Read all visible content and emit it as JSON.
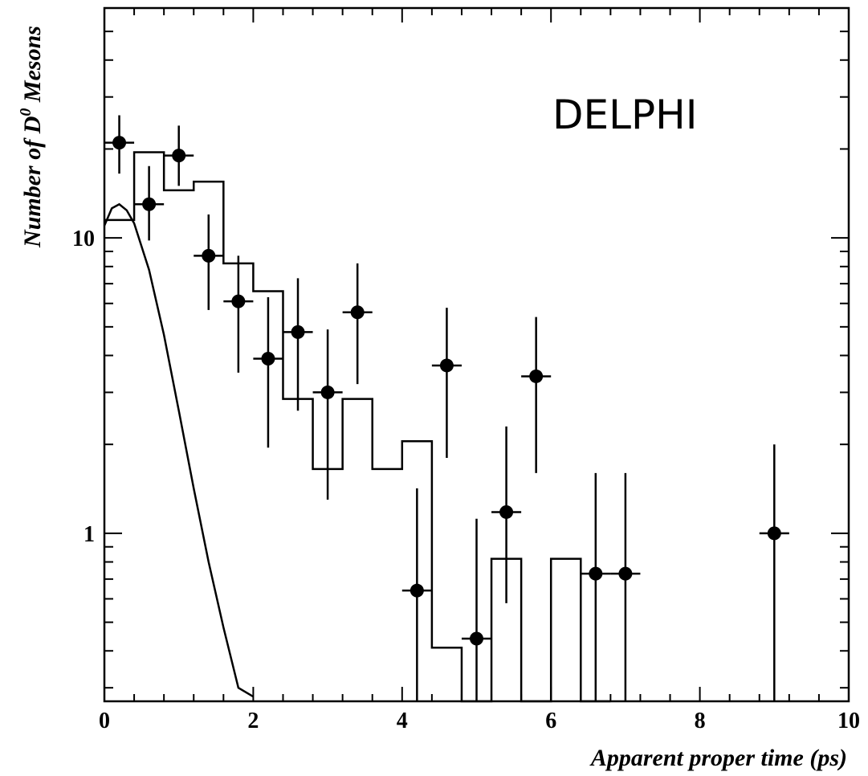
{
  "chart_data": {
    "type": "scatter",
    "title": "",
    "annotation": "DELPHI",
    "xlabel": "Apparent proper time (ps)",
    "ylabel_main": "Number of D",
    "ylabel_sup": "0",
    "ylabel_tail": " Mesons",
    "xlim": [
      0,
      10
    ],
    "ylim": [
      0.27,
      60
    ],
    "yscale": "log",
    "grid": false,
    "x_ticks": [
      0,
      2,
      4,
      6,
      8,
      10
    ],
    "x_tick_labels": [
      "0",
      "2",
      "4",
      "6",
      "8",
      "10"
    ],
    "y_ticks": [
      1,
      10
    ],
    "y_tick_labels": [
      "1",
      "10"
    ],
    "points": {
      "x": [
        0.2,
        0.6,
        1.0,
        1.4,
        1.8,
        2.2,
        2.6,
        3.0,
        3.4,
        4.2,
        4.6,
        5.0,
        5.4,
        5.8,
        6.6,
        7.0,
        9.0
      ],
      "y": [
        21.0,
        13.0,
        19.0,
        8.7,
        6.1,
        3.9,
        4.8,
        3.0,
        5.6,
        0.64,
        3.7,
        0.44,
        1.18,
        3.4,
        0.73,
        0.73,
        1.0
      ],
      "y_low": [
        16.5,
        9.8,
        15.0,
        5.7,
        3.5,
        1.95,
        2.6,
        1.3,
        3.2,
        0.27,
        1.8,
        0.27,
        0.58,
        1.6,
        0.27,
        0.27,
        0.27
      ],
      "y_high": [
        26.0,
        17.5,
        24.0,
        12.0,
        8.7,
        6.3,
        7.3,
        4.9,
        8.2,
        1.42,
        5.8,
        1.12,
        2.3,
        5.4,
        1.6,
        1.6,
        2.0
      ],
      "x_halfwidth": 0.2
    },
    "histogram": {
      "edges": [
        0.0,
        0.4,
        0.8,
        1.2,
        1.6,
        2.0,
        2.4,
        2.8,
        3.2,
        3.6,
        4.0,
        4.4,
        4.8,
        5.2,
        5.6,
        6.0,
        6.4,
        6.8
      ],
      "values": [
        11.5,
        19.5,
        14.5,
        15.5,
        8.2,
        6.6,
        2.85,
        1.65,
        2.85,
        1.65,
        2.05,
        0.41,
        0.0,
        0.82,
        0.0,
        0.82,
        0.0
      ]
    },
    "curve": {
      "x": [
        0.0,
        0.1,
        0.2,
        0.3,
        0.4,
        0.6,
        0.8,
        1.0,
        1.2,
        1.4,
        1.6,
        1.8,
        2.0
      ],
      "y": [
        11.0,
        12.6,
        13.0,
        12.4,
        11.2,
        7.8,
        4.7,
        2.6,
        1.42,
        0.8,
        0.48,
        0.3,
        0.28
      ]
    }
  }
}
